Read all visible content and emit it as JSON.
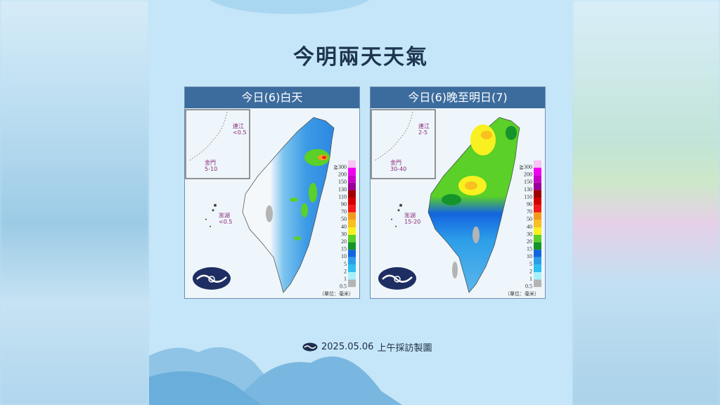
{
  "title": "今明兩天天氣",
  "panels": [
    {
      "header": "今日(6)白天",
      "insets": {
        "lienchiang": {
          "name": "連江",
          "value": "<0.5"
        },
        "kinmen": {
          "name": "金門",
          "value": "5-10"
        },
        "penghu": {
          "name": "澎湖",
          "value": "<0.5"
        }
      }
    },
    {
      "header": "今日(6)晚至明日(7)",
      "insets": {
        "lienchiang": {
          "name": "連江",
          "value": "2-5"
        },
        "kinmen": {
          "name": "金門",
          "value": "30-40"
        },
        "penghu": {
          "name": "澎湖",
          "value": "15-20"
        }
      }
    }
  ],
  "legend": {
    "labels": [
      "≧300",
      "200",
      "150",
      "130",
      "110",
      "90",
      "70",
      "50",
      "40",
      "30",
      "20",
      "15",
      "10",
      "5",
      "2",
      "1",
      "0.5"
    ],
    "colors": [
      "#f8c4f2",
      "#f000f0",
      "#c800c8",
      "#9a0098",
      "#a00000",
      "#d20000",
      "#f41a1a",
      "#f49a1a",
      "#f8c020",
      "#f8f020",
      "#5ad028",
      "#14942a",
      "#1464e0",
      "#2c9ee8",
      "#30c0f0",
      "#a8f0f8",
      "#b4b4b4"
    ],
    "unit": "（單位：毫米）"
  },
  "footer": {
    "date": "2025.05.06",
    "text": "上午採訪製圖",
    "logo": "cwa-logo"
  }
}
